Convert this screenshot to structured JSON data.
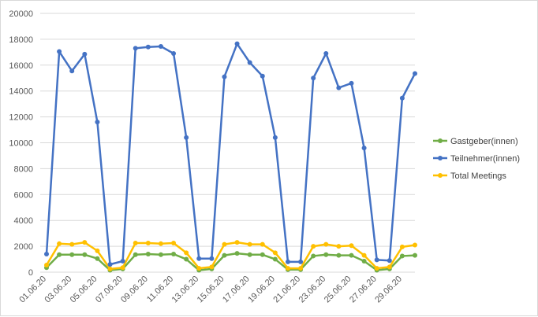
{
  "chart_data": {
    "type": "line",
    "grid": true,
    "legend_position": "right",
    "ylim": [
      0,
      20000
    ],
    "yticks": [
      0,
      2000,
      4000,
      6000,
      8000,
      10000,
      12000,
      14000,
      16000,
      18000,
      20000
    ],
    "x": [
      "01.06.20",
      "02.06.20",
      "03.06.20",
      "04.06.20",
      "05.06.20",
      "06.06.20",
      "07.06.20",
      "08.06.20",
      "09.06.20",
      "10.06.20",
      "11.06.20",
      "12.06.20",
      "13.06.20",
      "14.06.20",
      "15.06.20",
      "16.06.20",
      "17.06.20",
      "18.06.20",
      "19.06.20",
      "20.06.20",
      "21.06.20",
      "22.06.20",
      "23.06.20",
      "24.06.20",
      "25.06.20",
      "26.06.20",
      "27.06.20",
      "28.06.20",
      "29.06.20",
      "30.06.20"
    ],
    "x_tick_labels": [
      "01.06.20",
      "03.06.20",
      "05.06.20",
      "07.06.20",
      "09.06.20",
      "11.06.20",
      "13.06.20",
      "15.06.20",
      "17.06.20",
      "19.06.20",
      "21.06.20",
      "23.06.20",
      "25.06.20",
      "27.06.20",
      "29.06.20"
    ],
    "series": [
      {
        "name": "Gastgeber(innen)",
        "color": "#70ad47",
        "values": [
          350,
          1350,
          1350,
          1350,
          1050,
          150,
          250,
          1350,
          1400,
          1350,
          1400,
          1000,
          150,
          250,
          1300,
          1450,
          1350,
          1350,
          1000,
          200,
          200,
          1250,
          1350,
          1300,
          1300,
          850,
          150,
          250,
          1250,
          1300
        ]
      },
      {
        "name": "Teilnehmer(innen)",
        "color": "#4472c4",
        "values": [
          1400,
          17050,
          15550,
          16850,
          11600,
          600,
          850,
          17300,
          17400,
          17450,
          16900,
          10400,
          1050,
          1050,
          15100,
          17650,
          16200,
          15150,
          10400,
          800,
          800,
          15000,
          16900,
          14250,
          14600,
          9600,
          950,
          900,
          13450,
          15350
        ]
      },
      {
        "name": "Total Meetings",
        "color": "#ffc000",
        "values": [
          550,
          2200,
          2150,
          2300,
          1650,
          250,
          350,
          2250,
          2250,
          2200,
          2250,
          1500,
          300,
          400,
          2150,
          2300,
          2150,
          2150,
          1500,
          300,
          300,
          2000,
          2150,
          2000,
          2050,
          1300,
          300,
          400,
          1950,
          2100
        ]
      }
    ],
    "legend_order": [
      "Gastgeber(innen)",
      "Teilnehmer(innen)",
      "Total Meetings"
    ]
  }
}
